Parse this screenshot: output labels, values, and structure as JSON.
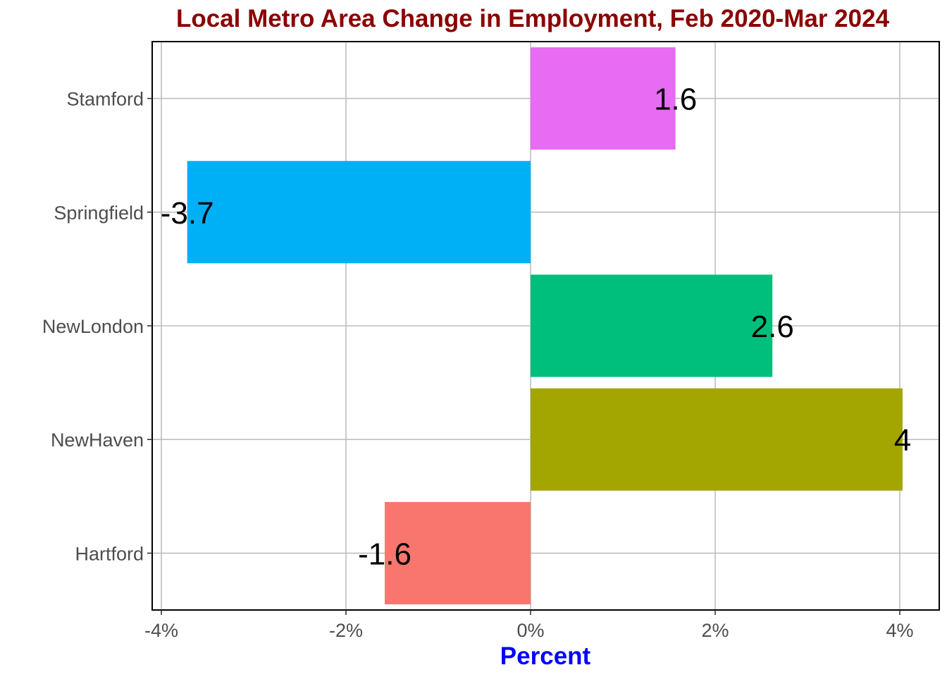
{
  "chart_data": {
    "type": "bar",
    "orientation": "horizontal",
    "title": "Local Metro Area Change in Employment, Feb 2020-Mar 2024",
    "xlabel": "Percent",
    "ylabel": "",
    "categories": [
      "Hartford",
      "NewHaven",
      "NewLondon",
      "Springfield",
      "Stamford"
    ],
    "values": [
      -1.58,
      4.03,
      2.62,
      -3.72,
      1.57
    ],
    "data_labels": [
      "-1.6",
      "4",
      "2.6",
      "-3.7",
      "1.6"
    ],
    "colors": [
      "#F8766D",
      "#A3A500",
      "#00BF7D",
      "#00B0F6",
      "#E76BF3"
    ],
    "xlim": [
      -4.1,
      4.4
    ],
    "x_ticks": [
      -4,
      -2,
      0,
      2,
      4
    ],
    "x_tick_labels": [
      "-4%",
      "-2%",
      "0%",
      "2%",
      "4%"
    ],
    "grid": true,
    "legend": "none",
    "title_color": "#8B0000",
    "xlabel_color": "#0000FF"
  }
}
